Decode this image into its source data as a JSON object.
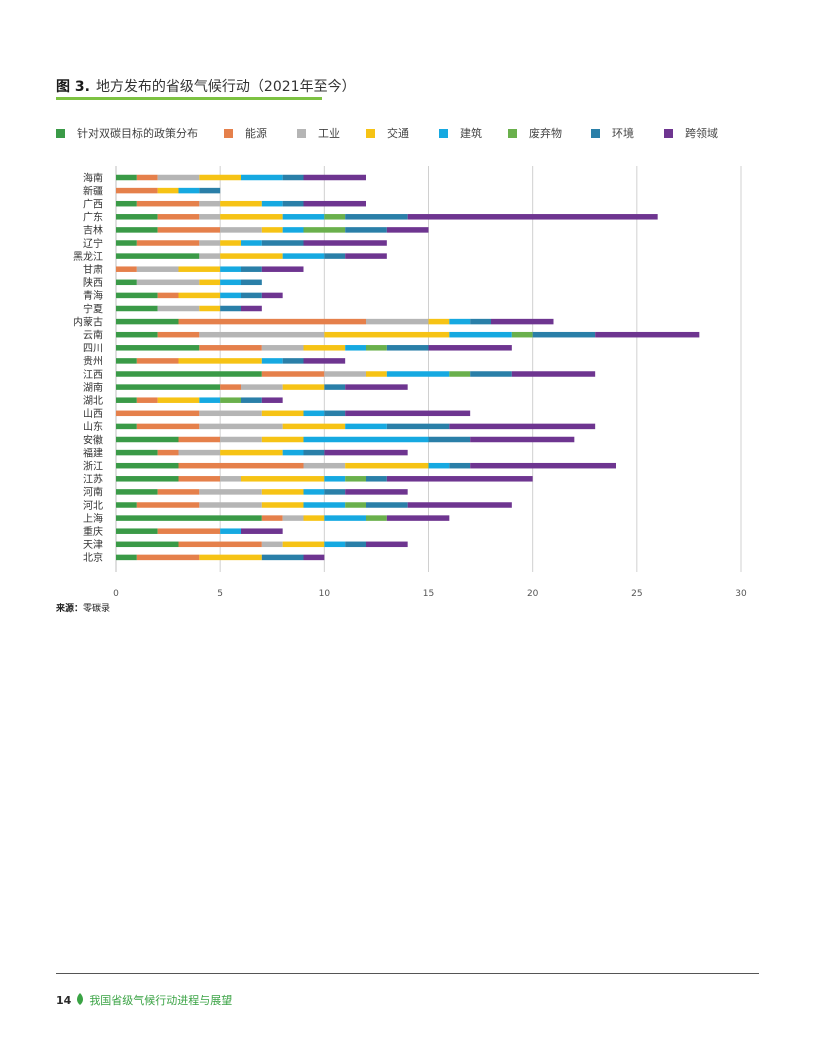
{
  "figure": {
    "number": "图 3.",
    "title": "地方发布的省级气候行动（2021年至今）"
  },
  "colors": {
    "title_rule": "#7dc242",
    "footer_text": "#3aa344",
    "grid": "#d0d0d0",
    "axis_text": "#555555"
  },
  "source": {
    "label": "来源：",
    "text": "零碳录"
  },
  "footer": {
    "page": "14",
    "leaf_icon": "leaf-icon",
    "text": "我国省级气候行动进程与展望"
  },
  "chart_data": {
    "type": "bar",
    "orientation": "horizontal",
    "stacked": true,
    "categories": [
      "海南",
      "新疆",
      "广西",
      "广东",
      "吉林",
      "辽宁",
      "黑龙江",
      "甘肃",
      "陕西",
      "青海",
      "宁夏",
      "内蒙古",
      "云南",
      "四川",
      "贵州",
      "江西",
      "湖南",
      "湖北",
      "山西",
      "山东",
      "安徽",
      "福建",
      "浙江",
      "江苏",
      "河南",
      "河北",
      "上海",
      "重庆",
      "天津",
      "北京"
    ],
    "xlim": [
      0,
      30
    ],
    "xticks": [
      0,
      5,
      10,
      15,
      20,
      25,
      30
    ],
    "grid": true,
    "legend_position": "top",
    "series": [
      {
        "name": "针对双碳目标的政策分布",
        "color": "#3a9a47",
        "values": [
          1,
          0,
          1,
          2,
          2,
          1,
          4,
          0,
          1,
          2,
          2,
          3,
          2,
          4,
          1,
          7,
          5,
          1,
          0,
          1,
          3,
          2,
          3,
          3,
          2,
          1,
          7,
          2,
          3,
          1
        ]
      },
      {
        "name": "能源",
        "color": "#e5804b",
        "values": [
          1,
          2,
          3,
          2,
          3,
          3,
          0,
          1,
          0,
          1,
          0,
          9,
          2,
          3,
          2,
          3,
          1,
          1,
          4,
          3,
          2,
          1,
          6,
          2,
          2,
          3,
          1,
          3,
          4,
          3
        ]
      },
      {
        "name": "工业",
        "color": "#b5b5b5",
        "values": [
          2,
          0,
          1,
          1,
          2,
          1,
          1,
          2,
          3,
          0,
          2,
          3,
          6,
          2,
          0,
          2,
          2,
          0,
          3,
          4,
          2,
          2,
          2,
          1,
          3,
          3,
          1,
          0,
          1,
          0
        ]
      },
      {
        "name": "交通",
        "color": "#f6c315",
        "values": [
          2,
          1,
          2,
          3,
          1,
          1,
          3,
          2,
          1,
          2,
          1,
          1,
          6,
          2,
          4,
          1,
          2,
          2,
          2,
          3,
          2,
          3,
          4,
          4,
          2,
          2,
          1,
          0,
          2,
          3
        ]
      },
      {
        "name": "建筑",
        "color": "#16a9e1",
        "values": [
          2,
          1,
          1,
          2,
          1,
          1,
          2,
          1,
          1,
          1,
          0,
          1,
          3,
          1,
          1,
          3,
          0,
          1,
          1,
          2,
          6,
          1,
          1,
          1,
          1,
          2,
          2,
          1,
          1,
          0
        ]
      },
      {
        "name": "废弃物",
        "color": "#6ab04c",
        "values": [
          0,
          0,
          0,
          1,
          2,
          0,
          0,
          0,
          0,
          0,
          0,
          0,
          1,
          1,
          0,
          1,
          0,
          1,
          0,
          0,
          0,
          0,
          0,
          1,
          0,
          1,
          1,
          0,
          0,
          0
        ]
      },
      {
        "name": "环境",
        "color": "#2a7fa8",
        "values": [
          1,
          1,
          1,
          3,
          2,
          2,
          1,
          1,
          1,
          1,
          1,
          1,
          3,
          2,
          1,
          2,
          1,
          1,
          1,
          3,
          2,
          1,
          1,
          1,
          1,
          2,
          0,
          0,
          1,
          2
        ]
      },
      {
        "name": "跨领域",
        "color": "#6e3590",
        "values": [
          3,
          0,
          3,
          12,
          2,
          4,
          2,
          2,
          0,
          1,
          1,
          3,
          5,
          4,
          2,
          4,
          3,
          1,
          6,
          7,
          5,
          4,
          7,
          7,
          3,
          5,
          3,
          2,
          2,
          1
        ]
      }
    ]
  }
}
